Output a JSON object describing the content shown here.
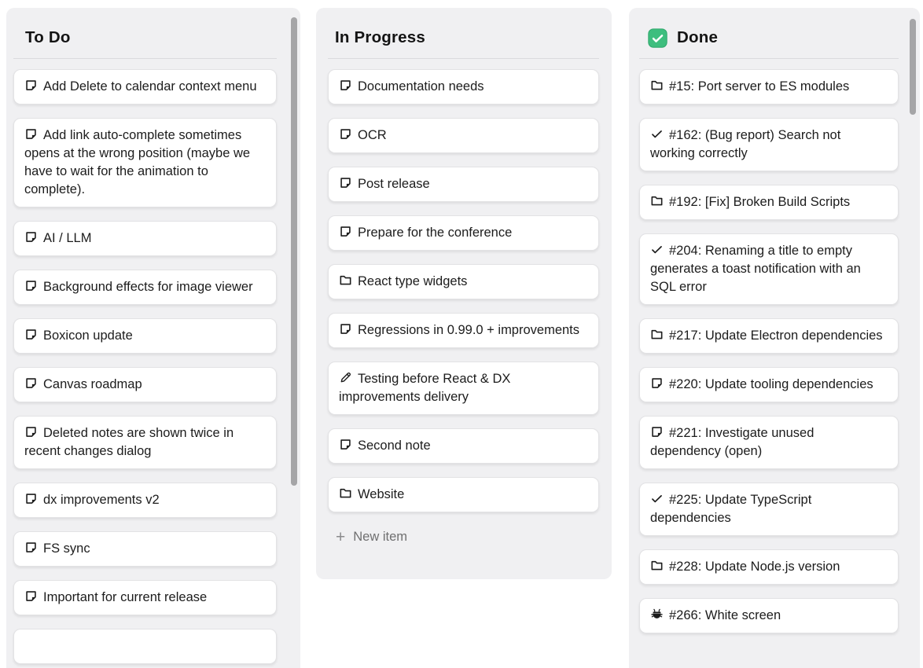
{
  "columns": [
    {
      "title": "To Do",
      "cards": [
        {
          "icon": "note",
          "text": "Add Delete to calendar context menu"
        },
        {
          "icon": "note",
          "text": "Add link auto-complete sometimes opens at the wrong position (maybe we have to wait for the animation to complete)."
        },
        {
          "icon": "note",
          "text": "AI / LLM"
        },
        {
          "icon": "note",
          "text": "Background effects for image viewer"
        },
        {
          "icon": "note",
          "text": "Boxicon update"
        },
        {
          "icon": "note",
          "text": "Canvas roadmap"
        },
        {
          "icon": "note",
          "text": "Deleted notes are shown twice in recent changes dialog"
        },
        {
          "icon": "note",
          "text": "dx improvements v2"
        },
        {
          "icon": "note",
          "text": "FS sync"
        },
        {
          "icon": "note",
          "text": "Important for current release"
        },
        {
          "icon": "",
          "text": ""
        }
      ]
    },
    {
      "title": "In Progress",
      "new_item_label": "New item",
      "new_item_plus": "+",
      "cards": [
        {
          "icon": "note",
          "text": "Documentation needs"
        },
        {
          "icon": "note",
          "text": "OCR"
        },
        {
          "icon": "note",
          "text": "Post release"
        },
        {
          "icon": "note",
          "text": "Prepare for the conference"
        },
        {
          "icon": "folder",
          "text": "React type widgets"
        },
        {
          "icon": "note",
          "text": "Regressions in 0.99.0 + improvements"
        },
        {
          "icon": "pencil",
          "text": "Testing before React & DX improvements delivery"
        },
        {
          "icon": "note",
          "text": "Second note"
        },
        {
          "icon": "folder",
          "text": "Website"
        }
      ]
    },
    {
      "title": "Done",
      "header_icon": "checked-checkbox",
      "cards": [
        {
          "icon": "folder",
          "text": "#15: Port server to ES modules"
        },
        {
          "icon": "check",
          "text": "#162: (Bug report) Search not working correctly"
        },
        {
          "icon": "folder",
          "text": "#192: [Fix] Broken Build Scripts"
        },
        {
          "icon": "check",
          "text": "#204: Renaming a title to empty generates a toast notification with an SQL error"
        },
        {
          "icon": "folder",
          "text": "#217: Update Electron dependencies"
        },
        {
          "icon": "note",
          "text": "#220: Update tooling dependencies"
        },
        {
          "icon": "note",
          "text": "#221: Investigate unused dependency (open)"
        },
        {
          "icon": "check",
          "text": "#225: Update TypeScript dependencies"
        },
        {
          "icon": "folder",
          "text": "#228: Update Node.js version"
        },
        {
          "icon": "bug",
          "text": "#266: White screen"
        }
      ]
    }
  ],
  "colors": {
    "done_checkbox_green": "#3EBE7E",
    "done_checkbox_border": "#2FA86C",
    "column_background": "#F0F0F2",
    "card_text": "#1C1C1C",
    "scrollbar_thumb": "#A5A5A7"
  }
}
